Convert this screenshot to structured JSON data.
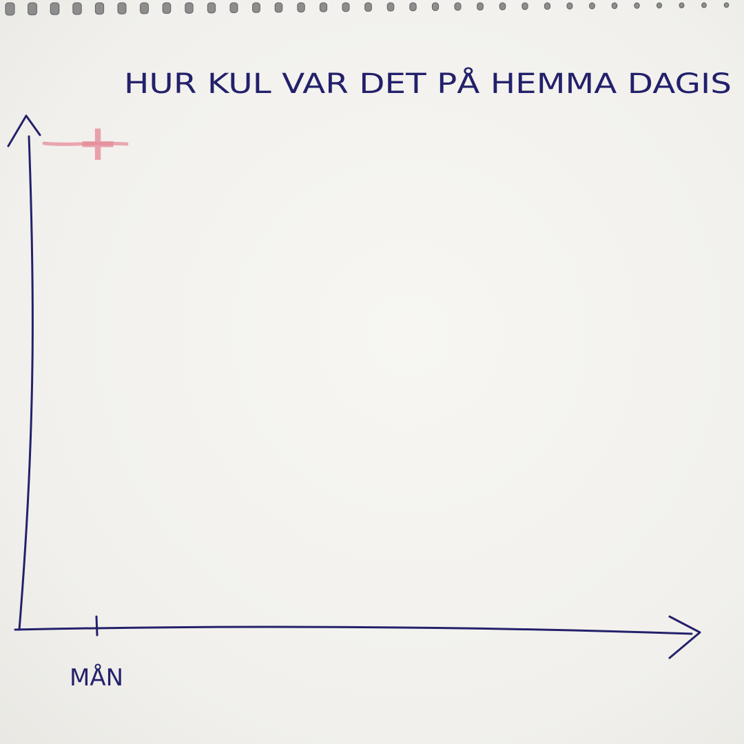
{
  "chart_data": {
    "type": "line",
    "title": "HUR KUL VAR DET PÅ HEMMA DAGIS",
    "xlabel": "",
    "ylabel": "",
    "categories": [
      "MÅN"
    ],
    "y_tick_labels": [
      "+"
    ],
    "series": [],
    "grid": false,
    "legend": "none"
  },
  "colors": {
    "ink": "#23206b",
    "positive_marker": "#e58c9a",
    "paper": "#f3f2ee"
  }
}
